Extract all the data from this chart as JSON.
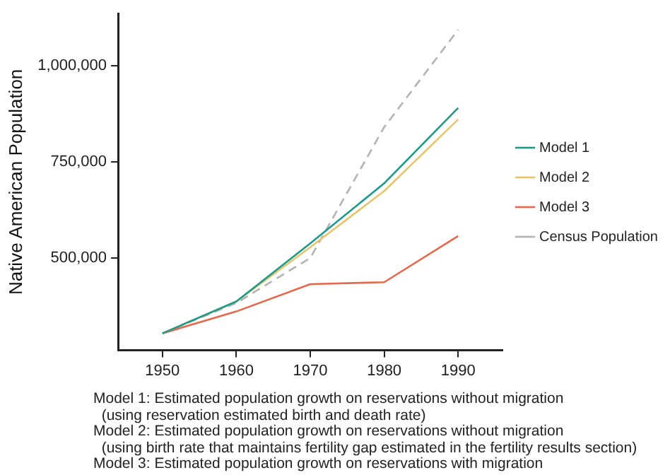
{
  "chart_data": {
    "type": "line",
    "ylabel": "Native American Population",
    "x": [
      1950,
      1960,
      1970,
      1980,
      1990
    ],
    "series": [
      {
        "name": "Model 1",
        "color": "#1b9a8c",
        "values": [
          304000,
          387000,
          538000,
          694000,
          890000
        ]
      },
      {
        "name": "Model 2",
        "color": "#e8c46a",
        "values": [
          304000,
          387000,
          528000,
          674000,
          860000
        ]
      },
      {
        "name": "Model 3",
        "color": "#e8674a",
        "values": [
          304000,
          361000,
          432000,
          437000,
          557000
        ]
      },
      {
        "name": "Census Population",
        "color": "#b3b3b3",
        "line_style": "dashed",
        "values": [
          304000,
          383000,
          500000,
          840000,
          1093000
        ]
      }
    ],
    "xlim": [
      1944,
      1996
    ],
    "xticks": [
      1950,
      1960,
      1970,
      1980,
      1990
    ],
    "ylim": [
      260000,
      1135000
    ],
    "yticks": [
      {
        "value": 500000,
        "label": "500,000"
      },
      {
        "value": 750000,
        "label": "750,000"
      },
      {
        "value": 1000000,
        "label": "1,000,000"
      }
    ],
    "grid": false,
    "legend": "right",
    "marker": "none",
    "annotations": [
      "Model 1: Estimated population growth on reservations without migration",
      "  (using reservation estimated birth and death rate)",
      "Model 2: Estimated population growth on reservations without migration",
      "  (using birth rate that maintains fertility gap estimated in the fertility results section)",
      "Model 3: Estimated population growth on reservations with migration"
    ]
  }
}
